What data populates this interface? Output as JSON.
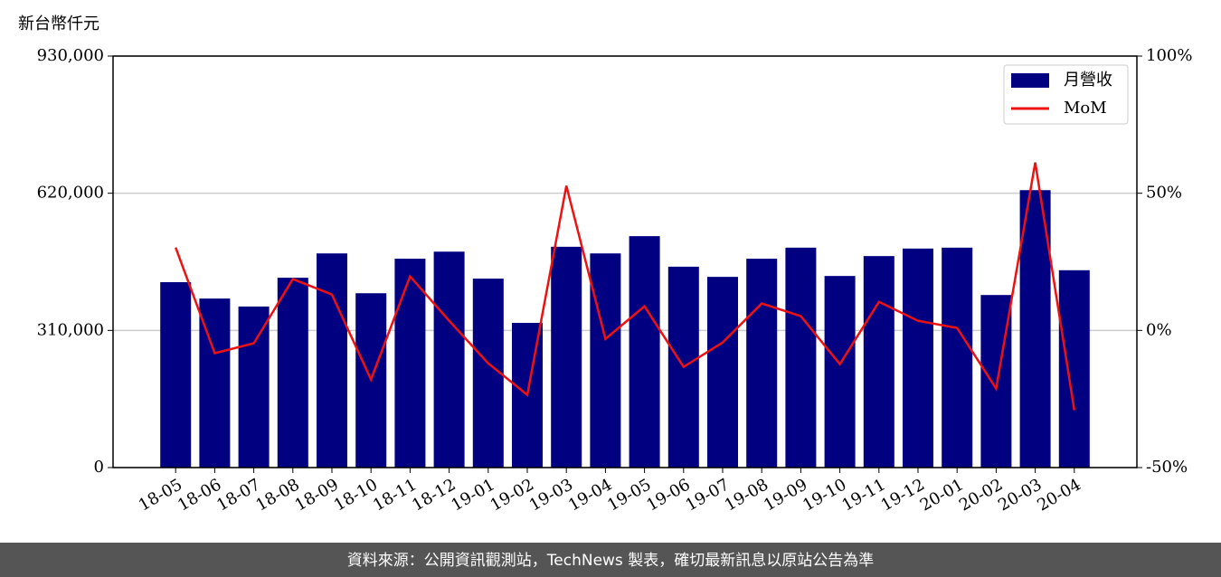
{
  "chart_data": {
    "type": "bar-line",
    "y_label": "新台幣仟元",
    "categories": [
      "18-05",
      "18-06",
      "18-07",
      "18-08",
      "18-09",
      "18-10",
      "18-11",
      "18-12",
      "19-01",
      "19-02",
      "19-03",
      "19-04",
      "19-05",
      "19-06",
      "19-07",
      "19-08",
      "19-09",
      "19-10",
      "19-11",
      "19-12",
      "20-01",
      "20-02",
      "20-03",
      "20-04"
    ],
    "series": [
      {
        "name": "月營收",
        "color": "#000080",
        "type": "bar",
        "values": [
          419000,
          382000,
          364000,
          429000,
          484000,
          394000,
          472000,
          488000,
          427000,
          327000,
          499000,
          484000,
          523000,
          454000,
          431000,
          472000,
          497000,
          433000,
          478000,
          495000,
          497000,
          390000,
          627000,
          446000
        ]
      },
      {
        "name": "MoM",
        "color": "#ee1111",
        "type": "line",
        "axis": "y2",
        "values": [
          30.2,
          -8.3,
          -4.7,
          18.7,
          13.1,
          -17.9,
          19.7,
          3.5,
          -12.0,
          -23.5,
          52.7,
          -3.1,
          8.8,
          -13.3,
          -4.4,
          9.8,
          5.2,
          -12.3,
          10.4,
          3.5,
          0.9,
          -21.2,
          61.2,
          -29.1
        ]
      }
    ],
    "ylim": [
      0,
      930000
    ],
    "yticks": [
      0,
      {
        "value": 310000,
        "label": "310,000"
      },
      {
        "value": 620000,
        "label": "620,000"
      },
      {
        "value": 930000,
        "label": "930,000"
      }
    ],
    "y2lim": [
      -50,
      100
    ],
    "y2ticks": [
      {
        "value": -50,
        "label": "-50%"
      },
      {
        "value": 0,
        "label": "0%"
      },
      {
        "value": 50,
        "label": "50%"
      },
      {
        "value": 100,
        "label": "100%"
      }
    ],
    "grid": true,
    "legend": "upper right",
    "footer": "資料來源：公開資訊觀測站，TechNews 製表，確切最新訊息以原站公告為準"
  }
}
